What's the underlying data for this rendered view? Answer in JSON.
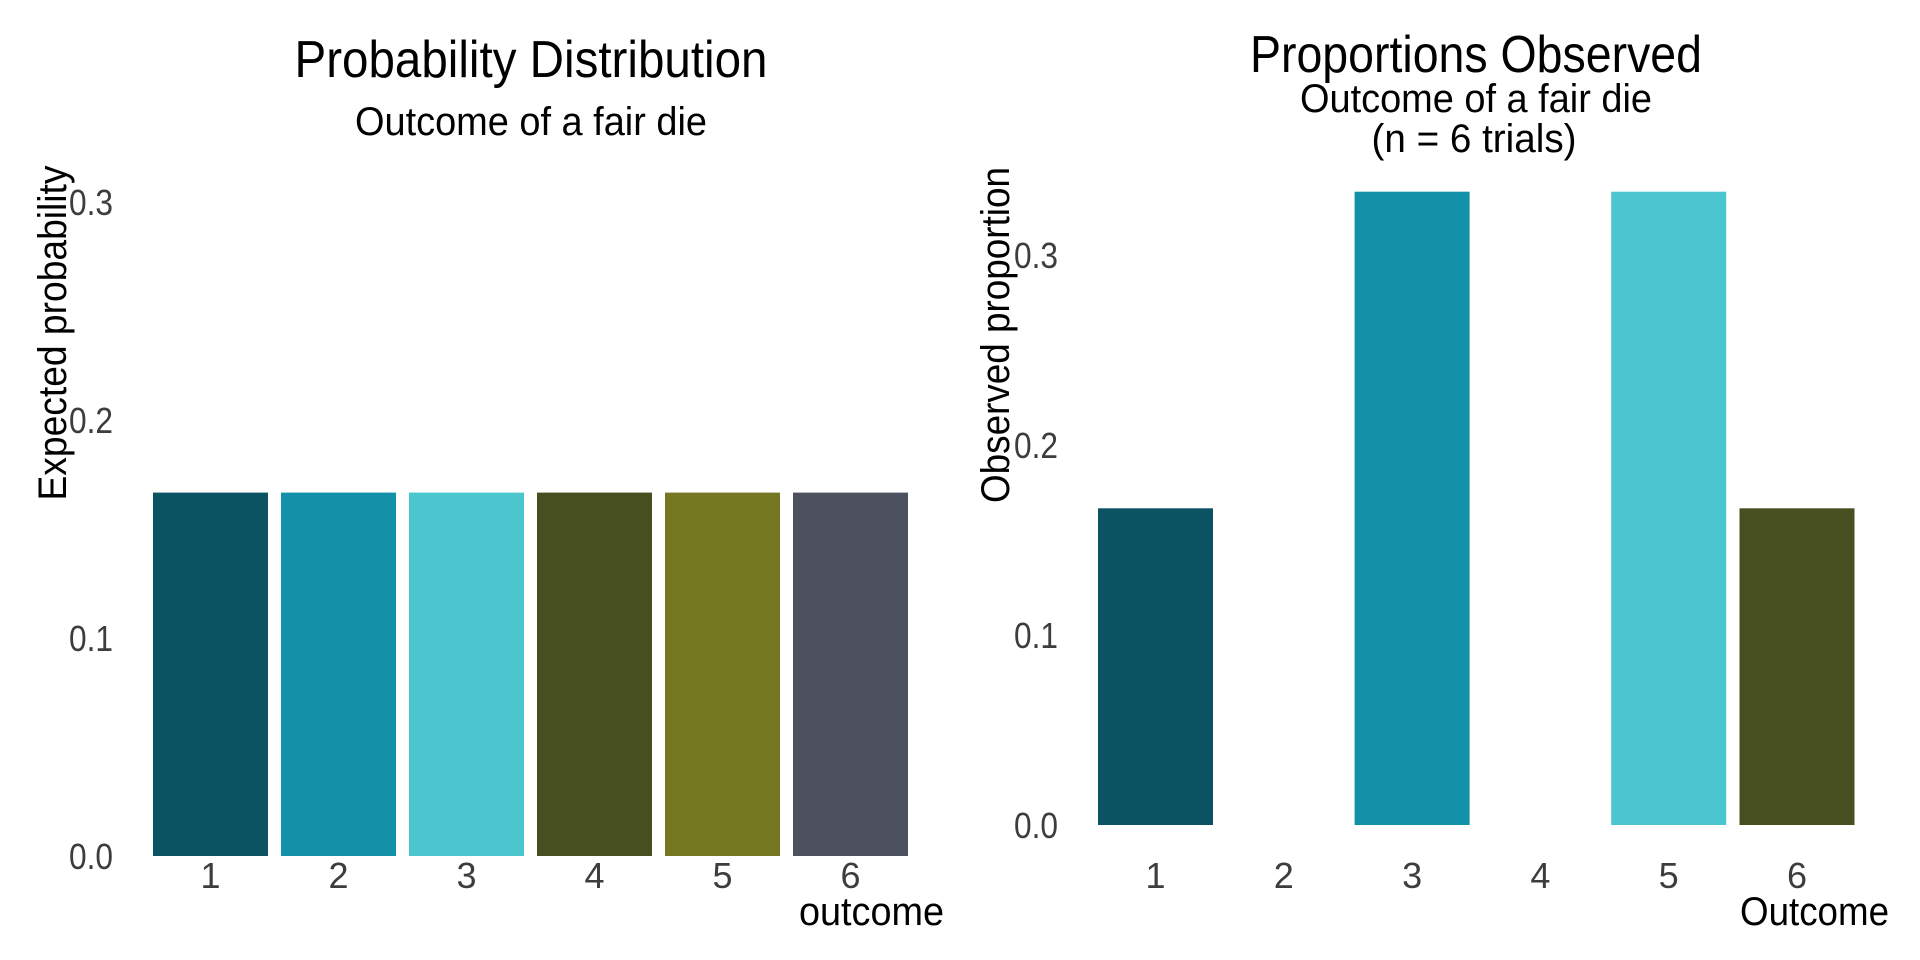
{
  "colors": {
    "outcome_1": "#0b5362",
    "outcome_2": "#1391a8",
    "outcome_3": "#4bc6cf",
    "outcome_4": "#474f21",
    "outcome_5": "#767721",
    "outcome_6": "#4d515d",
    "tick_text": "#3d3d3d",
    "title_text": "#000000"
  },
  "chart_data": [
    {
      "type": "bar",
      "title": "Probability Distribution",
      "subtitle": "Outcome of a fair die",
      "xlabel": "outcome",
      "ylabel": "Expected probability",
      "categories": [
        "1",
        "2",
        "3",
        "4",
        "5",
        "6"
      ],
      "values": [
        0.1667,
        0.1667,
        0.1667,
        0.1667,
        0.1667,
        0.1667
      ],
      "bar_colors": [
        "#0b5362",
        "#1391a8",
        "#4bc6cf",
        "#474f21",
        "#767721",
        "#4d515d"
      ],
      "yticks": [
        "0.0",
        "0.1",
        "0.2",
        "0.3"
      ],
      "ytick_values": [
        0.0,
        0.1,
        0.2,
        0.3
      ],
      "ylim": [
        0,
        0.3
      ],
      "grid": false,
      "legend": "none"
    },
    {
      "type": "bar",
      "title": "Proportions Observed",
      "subtitle": [
        "Outcome of a fair die",
        "(n = 6 trials)"
      ],
      "xlabel": "Outcome",
      "ylabel": "Observed proportion",
      "categories": [
        "1",
        "2",
        "3",
        "4",
        "5",
        "6"
      ],
      "values": [
        0.1667,
        0,
        0.3333,
        0,
        0.3333,
        0.1667
      ],
      "bar_colors": [
        "#0b5362",
        "#1391a8",
        "#1391a8",
        "#4bc6cf",
        "#4bc6cf",
        "#474f21"
      ],
      "yticks": [
        "0.0",
        "0.1",
        "0.2",
        "0.3"
      ],
      "ytick_values": [
        0.0,
        0.1,
        0.2,
        0.3
      ],
      "ylim": [
        0,
        0.3333
      ],
      "grid": false,
      "legend": "none"
    }
  ]
}
